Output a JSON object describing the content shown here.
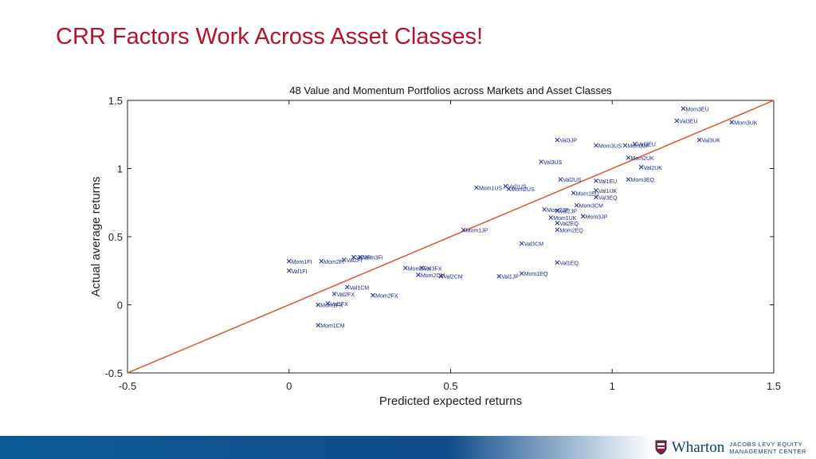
{
  "slide": {
    "title": "CRR Factors Work Across Asset Classes!"
  },
  "branding": {
    "name": "Wharton",
    "line1": "JACOBS LEVY EQUITY",
    "line2": "MANAGEMENT CENTER"
  },
  "colors": {
    "title": "#b5122e",
    "line": "#d9603e",
    "footer": "#0b5a96"
  },
  "chart_data": {
    "type": "scatter",
    "title": "48 Value and Momentum Portfolios across Markets and Asset Classes",
    "xlabel": "Predicted expected returns",
    "ylabel": "Actual average returns",
    "xlim": [
      -0.5,
      1.5
    ],
    "ylim": [
      -0.5,
      1.5
    ],
    "xticks": [
      "-0.5",
      "0",
      "0.5",
      "1",
      "1.5"
    ],
    "yticks": [
      "-0.5",
      "0",
      "0.5",
      "1",
      "1.5"
    ],
    "reference_line": [
      [
        -0.5,
        -0.5
      ],
      [
        1.5,
        1.5
      ]
    ],
    "points": [
      {
        "label": "Mom3EU",
        "x": 1.22,
        "y": 1.44
      },
      {
        "label": "Val3EU",
        "x": 1.2,
        "y": 1.35
      },
      {
        "label": "Mom3UK",
        "x": 1.37,
        "y": 1.34
      },
      {
        "label": "Val3UK",
        "x": 1.27,
        "y": 1.21
      },
      {
        "label": "Val3JP",
        "x": 0.83,
        "y": 1.21
      },
      {
        "label": "Mom3US",
        "x": 0.95,
        "y": 1.17
      },
      {
        "label": "Mom3JP",
        "x": 1.04,
        "y": 1.17
      },
      {
        "label": "Val3EU",
        "x": 1.07,
        "y": 1.18
      },
      {
        "label": "Mom2UK",
        "x": 1.05,
        "y": 1.08
      },
      {
        "label": "Val3US",
        "x": 0.78,
        "y": 1.05
      },
      {
        "label": "Val2UK",
        "x": 1.09,
        "y": 1.01
      },
      {
        "label": "Val2US",
        "x": 0.84,
        "y": 0.92
      },
      {
        "label": "Val1EU",
        "x": 0.95,
        "y": 0.91
      },
      {
        "label": "Mom3EQ",
        "x": 1.05,
        "y": 0.92
      },
      {
        "label": "Mom1US",
        "x": 0.58,
        "y": 0.86
      },
      {
        "label": "Val1US",
        "x": 0.67,
        "y": 0.87
      },
      {
        "label": "Mom2US",
        "x": 0.68,
        "y": 0.85
      },
      {
        "label": "Val1UK",
        "x": 0.95,
        "y": 0.84
      },
      {
        "label": "Mom1EU",
        "x": 0.88,
        "y": 0.82
      },
      {
        "label": "Val3EQ",
        "x": 0.95,
        "y": 0.79
      },
      {
        "label": "Mom3CM",
        "x": 0.89,
        "y": 0.73
      },
      {
        "label": "Mom2JP",
        "x": 0.79,
        "y": 0.7
      },
      {
        "label": "Val2JP",
        "x": 0.83,
        "y": 0.69
      },
      {
        "label": "Mom3JP",
        "x": 0.91,
        "y": 0.65
      },
      {
        "label": "Mom1UK",
        "x": 0.81,
        "y": 0.64
      },
      {
        "label": "Val2EQ",
        "x": 0.83,
        "y": 0.6
      },
      {
        "label": "Mom2EQ",
        "x": 0.83,
        "y": 0.55
      },
      {
        "label": "Mom1JP",
        "x": 0.54,
        "y": 0.55
      },
      {
        "label": "Val3CM",
        "x": 0.72,
        "y": 0.45
      },
      {
        "label": "Mom1FI",
        "x": 0.0,
        "y": 0.32
      },
      {
        "label": "Mom2FI",
        "x": 0.1,
        "y": 0.32
      },
      {
        "label": "Val2FI",
        "x": 0.17,
        "y": 0.33
      },
      {
        "label": "Val3FI",
        "x": 0.2,
        "y": 0.35
      },
      {
        "label": "Mom3FI",
        "x": 0.22,
        "y": 0.35
      },
      {
        "label": "Val1FI",
        "x": 0.0,
        "y": 0.25
      },
      {
        "label": "Mom3FX",
        "x": 0.36,
        "y": 0.27
      },
      {
        "label": "Val3FX",
        "x": 0.41,
        "y": 0.27
      },
      {
        "label": "Mom2CM",
        "x": 0.4,
        "y": 0.22
      },
      {
        "label": "Val2CM",
        "x": 0.47,
        "y": 0.21
      },
      {
        "label": "Val1JP",
        "x": 0.65,
        "y": 0.21
      },
      {
        "label": "Mom1EQ",
        "x": 0.72,
        "y": 0.23
      },
      {
        "label": "Val1EQ",
        "x": 0.83,
        "y": 0.31
      },
      {
        "label": "Val1CM",
        "x": 0.18,
        "y": 0.13
      },
      {
        "label": "Val2FX",
        "x": 0.14,
        "y": 0.08
      },
      {
        "label": "Mom2FX",
        "x": 0.26,
        "y": 0.07
      },
      {
        "label": "Val1FX",
        "x": 0.12,
        "y": 0.01
      },
      {
        "label": "Mom1FX",
        "x": 0.09,
        "y": 0.0
      },
      {
        "label": "Mom1CM",
        "x": 0.09,
        "y": -0.15
      }
    ]
  }
}
